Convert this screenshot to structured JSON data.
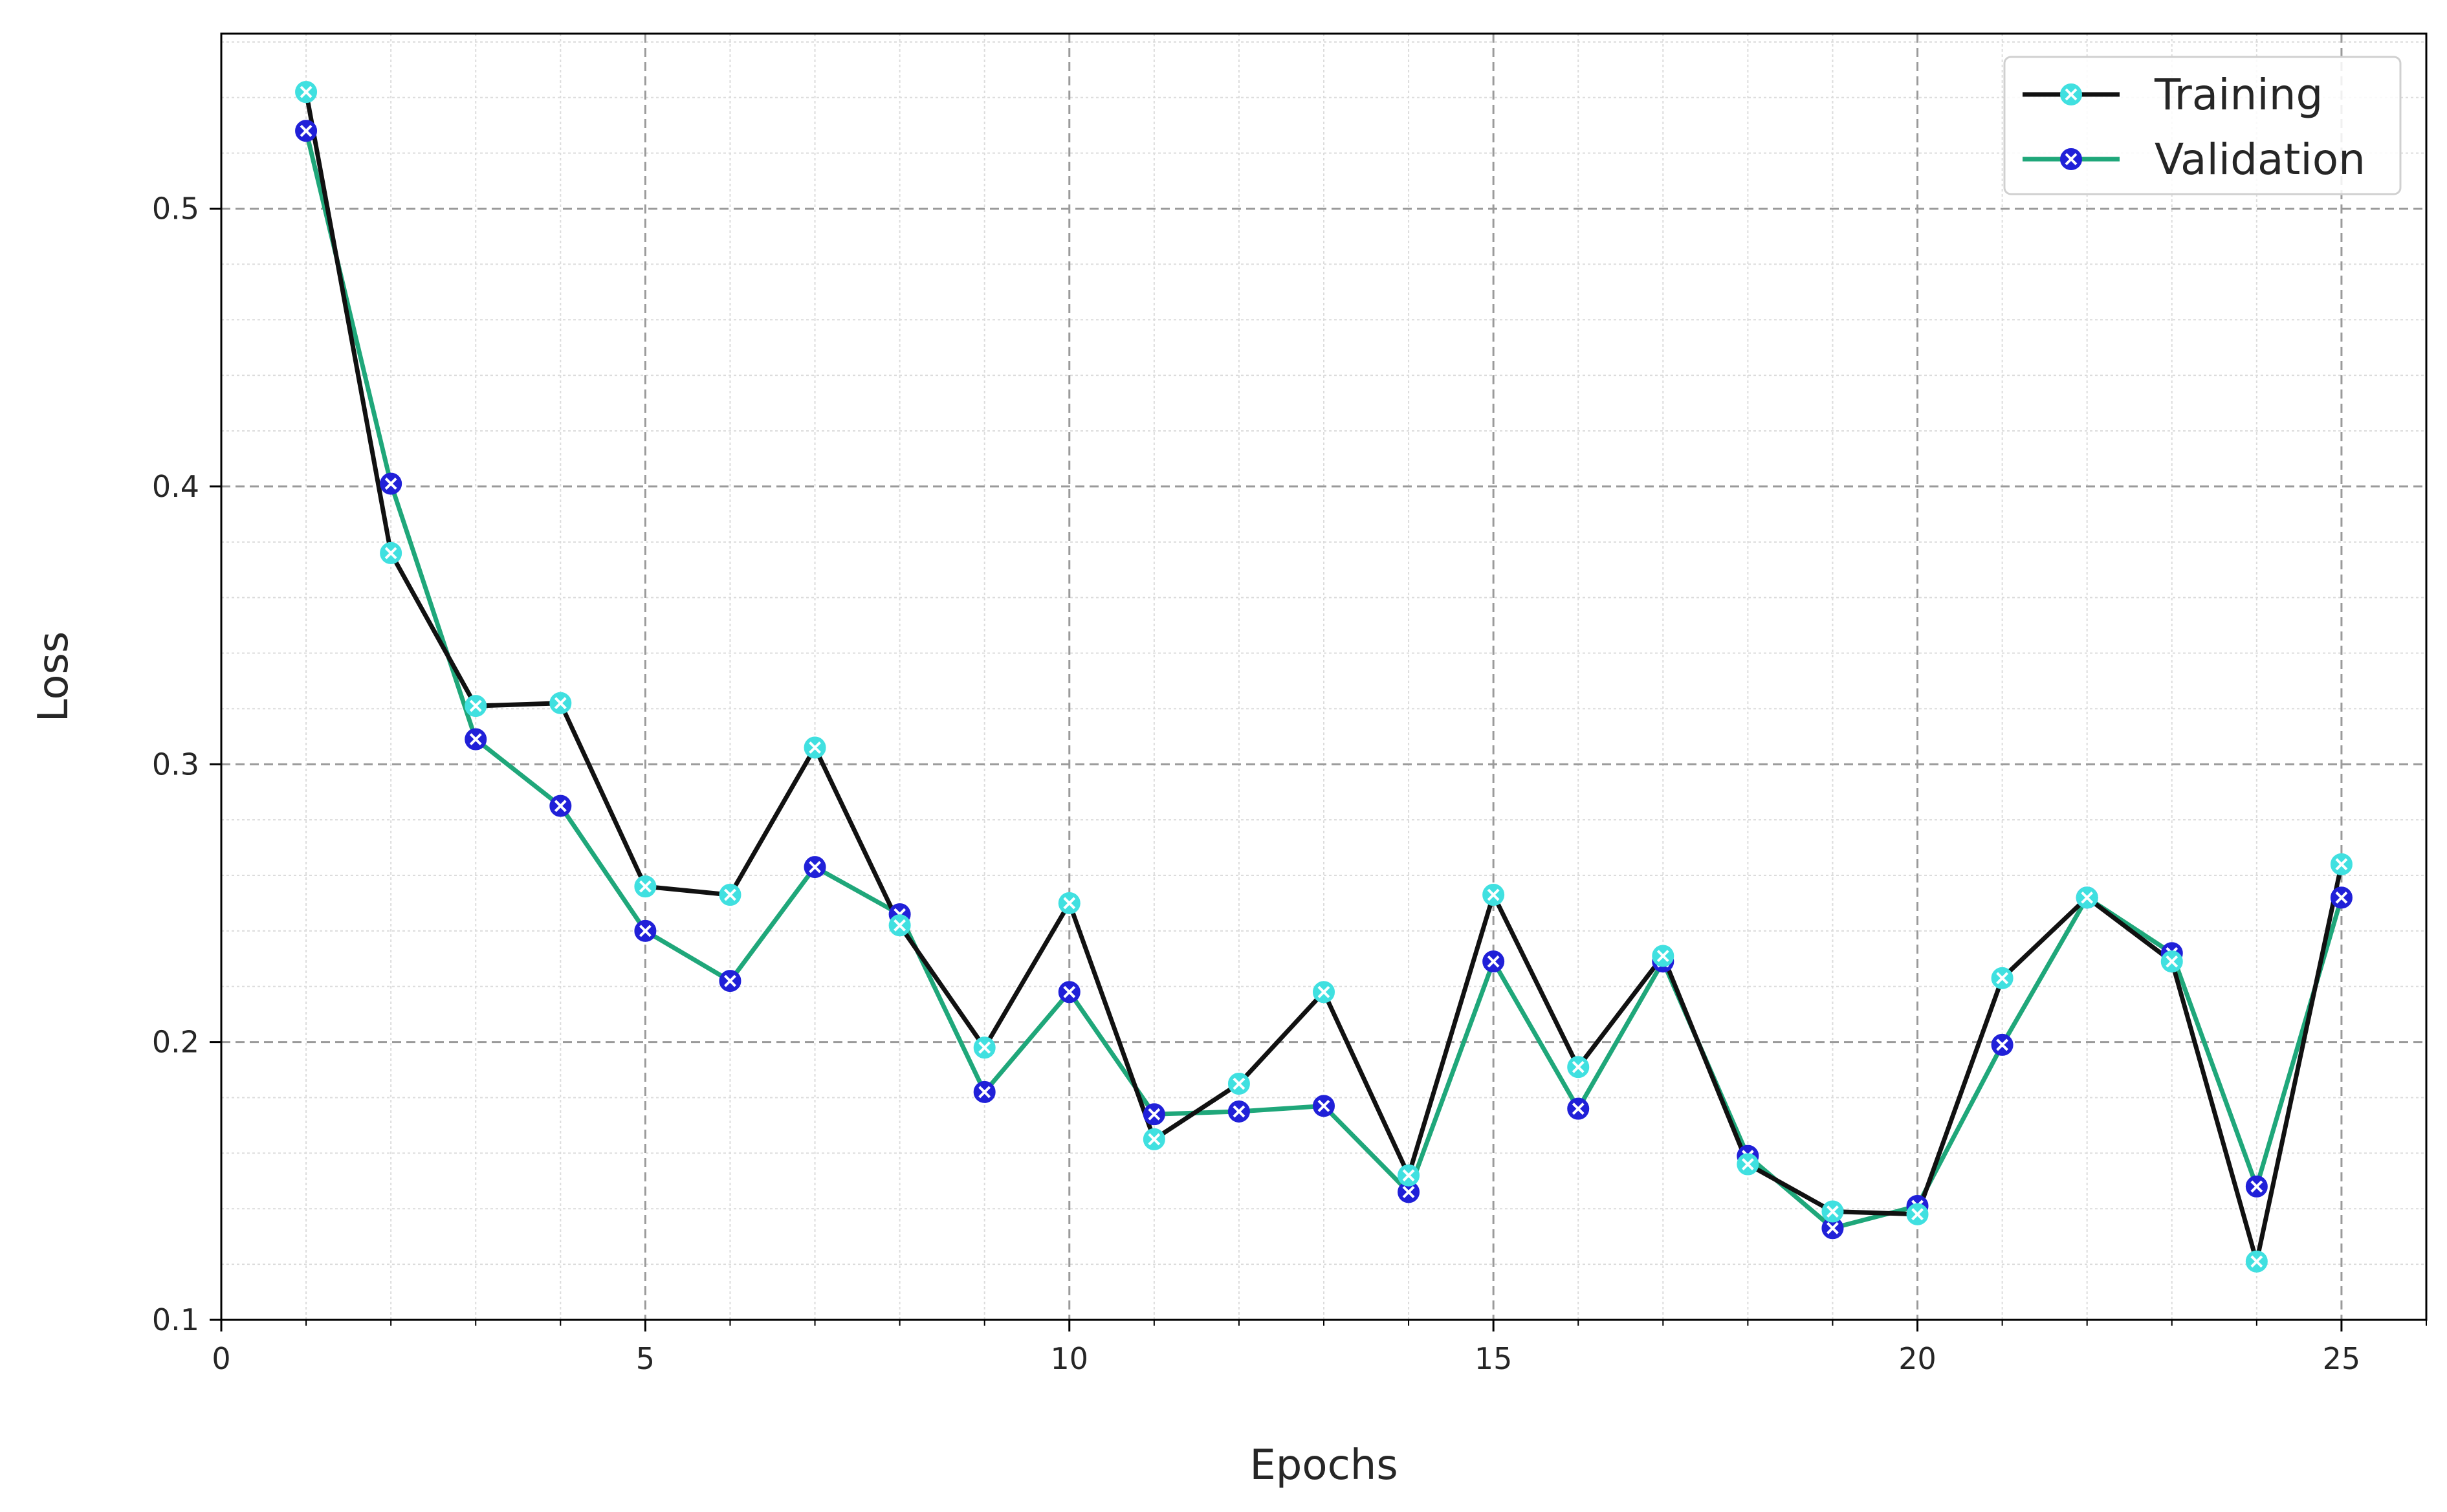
{
  "chart_data": {
    "type": "line",
    "title": "",
    "xlabel": "Epochs",
    "ylabel": "Loss",
    "xlim": [
      0,
      26
    ],
    "ylim": [
      0.1,
      0.563
    ],
    "x_ticks": [
      0,
      5,
      10,
      15,
      20,
      25
    ],
    "y_ticks": [
      0.1,
      0.2,
      0.3,
      0.4,
      0.5
    ],
    "x_tick_labels": [
      "0",
      "5",
      "10",
      "15",
      "20",
      "25"
    ],
    "y_tick_labels": [
      "0.1",
      "0.2",
      "0.3",
      "0.4",
      "0.5"
    ],
    "grid": true,
    "minor_grid": true,
    "legend_position": "top-right",
    "x": [
      1,
      2,
      3,
      4,
      5,
      6,
      7,
      8,
      9,
      10,
      11,
      12,
      13,
      14,
      15,
      16,
      17,
      18,
      19,
      20,
      21,
      22,
      23,
      24,
      25
    ],
    "series": [
      {
        "name": "Training",
        "line_color": "#111111",
        "marker_color": "#40e0e0",
        "values": [
          0.542,
          0.376,
          0.321,
          0.322,
          0.256,
          0.253,
          0.306,
          0.242,
          0.198,
          0.25,
          0.165,
          0.185,
          0.218,
          0.152,
          0.253,
          0.191,
          0.231,
          0.156,
          0.139,
          0.138,
          0.223,
          0.252,
          0.229,
          0.121,
          0.264
        ]
      },
      {
        "name": "Validation",
        "line_color": "#1fa77a",
        "marker_color": "#2020d8",
        "values": [
          0.528,
          0.401,
          0.309,
          0.285,
          0.24,
          0.222,
          0.263,
          0.246,
          0.182,
          0.218,
          0.174,
          0.175,
          0.177,
          0.146,
          0.229,
          0.176,
          0.229,
          0.159,
          0.133,
          0.141,
          0.199,
          0.252,
          0.232,
          0.148,
          0.252
        ]
      }
    ]
  }
}
